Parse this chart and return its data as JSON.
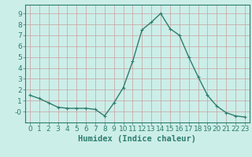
{
  "x": [
    0,
    1,
    2,
    3,
    4,
    5,
    6,
    7,
    8,
    9,
    10,
    11,
    12,
    13,
    14,
    15,
    16,
    17,
    18,
    19,
    20,
    21,
    22,
    23
  ],
  "y": [
    1.5,
    1.2,
    0.8,
    0.4,
    0.3,
    0.3,
    0.3,
    0.2,
    -0.4,
    0.8,
    2.2,
    4.6,
    7.5,
    8.2,
    9.0,
    7.6,
    7.0,
    5.0,
    3.2,
    1.5,
    0.5,
    -0.1,
    -0.4,
    -0.5
  ],
  "line_color": "#2e7d6e",
  "marker": "+",
  "marker_size": 3,
  "xlabel": "Humidex (Indice chaleur)",
  "xlim": [
    -0.5,
    23.5
  ],
  "ylim": [
    -1.0,
    9.8
  ],
  "yticks": [
    0,
    1,
    2,
    3,
    4,
    5,
    6,
    7,
    8,
    9
  ],
  "xticks": [
    0,
    1,
    2,
    3,
    4,
    5,
    6,
    7,
    8,
    9,
    10,
    11,
    12,
    13,
    14,
    15,
    16,
    17,
    18,
    19,
    20,
    21,
    22,
    23
  ],
  "bg_color": "#cceee8",
  "grid_color": "#c8a0a0",
  "line_width": 1.0,
  "font_size": 6.5,
  "xlabel_fontsize": 7.5
}
